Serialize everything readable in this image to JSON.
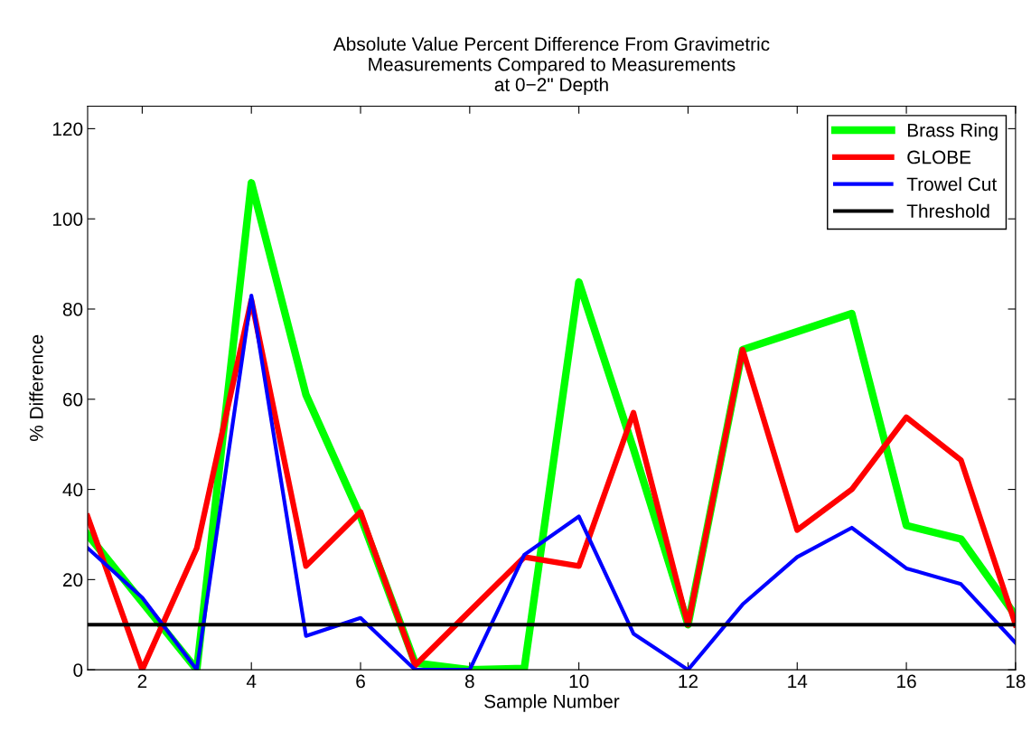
{
  "chart_data": {
    "type": "line",
    "title": "Absolute Value Percent Difference From Gravimetric\nMeasurements Compared to Measurements\nat 0−2\" Depth",
    "xlabel": "Sample Number",
    "ylabel": "% Difference",
    "x": [
      1,
      2,
      3,
      4,
      5,
      6,
      7,
      8,
      9,
      10,
      11,
      12,
      13,
      14,
      15,
      16,
      17,
      18
    ],
    "series": [
      {
        "name": "Brass Ring",
        "color": "#00ff00",
        "values": [
          30,
          15,
          0,
          108,
          61,
          34,
          1.5,
          0,
          0.3,
          86,
          49,
          10,
          71,
          75,
          79,
          32,
          29,
          12
        ]
      },
      {
        "name": "GLOBE",
        "color": "#ff0000",
        "values": [
          34,
          0,
          27,
          82,
          23,
          35,
          1,
          13,
          25,
          23,
          57,
          10,
          71,
          31,
          40,
          56,
          46.5,
          10
        ]
      },
      {
        "name": "Trowel Cut",
        "color": "#0000ff",
        "values": [
          27,
          16,
          0,
          83,
          7.5,
          11.5,
          0,
          0,
          25.5,
          34,
          8,
          0,
          14.5,
          25,
          31.5,
          22.5,
          19,
          6
        ]
      }
    ],
    "ref_lines": [
      {
        "axis": "y",
        "value": 10,
        "label": "Threshold",
        "color": "#000000"
      }
    ],
    "xlim": [
      1,
      18
    ],
    "xticks": [
      2,
      4,
      6,
      8,
      10,
      12,
      14,
      16,
      18
    ],
    "ylim": [
      0,
      125
    ],
    "yticks": [
      0,
      20,
      40,
      60,
      80,
      100,
      120
    ],
    "grid": false,
    "legend": "top right",
    "marker": "none",
    "line_style": "solid"
  }
}
